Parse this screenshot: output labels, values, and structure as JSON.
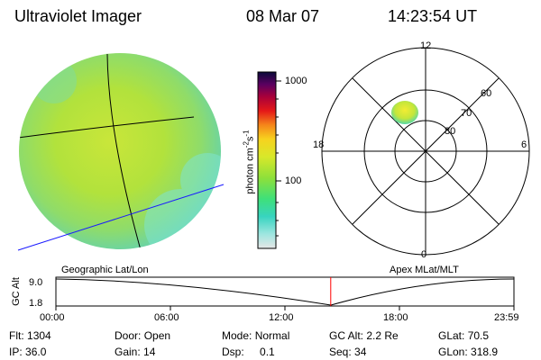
{
  "header": {
    "instrument": "Ultraviolet Imager",
    "date": "08 Mar 07",
    "time": "14:23:54 UT"
  },
  "colorbar": {
    "label": "photon cm",
    "label_sup1": "-2",
    "label_mid": "s",
    "label_sup2": "-1",
    "ticks": [
      "1000",
      "100"
    ]
  },
  "polar_plot": {
    "mlt_labels": {
      "top": "12",
      "left": "18",
      "right": "6",
      "bottom": "0"
    },
    "lat_labels": [
      "60",
      "70",
      "80"
    ],
    "label": "Apex MLat/MLT"
  },
  "image_panel": {
    "label": "Geographic Lat/Lon"
  },
  "timeline": {
    "ylabel": "GC Alt",
    "yticks": [
      "9.0",
      "1.8"
    ],
    "xticks": [
      "00:00",
      "06:00",
      "12:00",
      "18:00",
      "23:59"
    ],
    "current_time_fraction": 0.6
  },
  "info": {
    "flt_label": "Flt:",
    "flt_value": "1304",
    "ip_label": "IP:",
    "ip_value": "36.0",
    "door_label": "Door:",
    "door_value": "Open",
    "gain_label": "Gain:",
    "gain_value": "14",
    "mode_label": "Mode:",
    "mode_value": "Normal",
    "dsp_label": "Dsp:",
    "dsp_value": "0.1",
    "gcalt_label": "GC Alt:",
    "gcalt_value": "2.2 Re",
    "seq_label": "Seq:",
    "seq_value": "34",
    "glat_label": "GLat:",
    "glat_value": "70.5",
    "glon_label": "GLon:",
    "glon_value": "318.9"
  },
  "colors": {
    "curve": "#000000",
    "time_marker": "#ff0000",
    "geo_line_blue": "#1a1aff",
    "earth_green": "#b6e23a"
  }
}
